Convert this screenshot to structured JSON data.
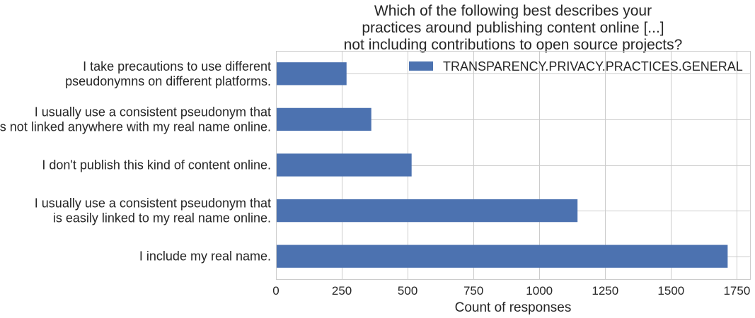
{
  "chart_data": {
    "type": "bar",
    "orientation": "horizontal",
    "title": [
      "Which of the following best describes your",
      "practices around publishing content online [...]",
      "not including contributions to open source projects?"
    ],
    "xlabel": "Count of responses",
    "ylabel": "",
    "xlim": [
      0,
      1800
    ],
    "xticks": [
      0,
      250,
      500,
      750,
      1000,
      1250,
      1500,
      1750
    ],
    "grid": true,
    "legend_position": "top-right",
    "series": [
      {
        "name": "TRANSPARENCY.PRIVACY.PRACTICES.GENERAL",
        "color": "#4c72b0",
        "values": [
          1715,
          1145,
          515,
          362,
          268
        ]
      }
    ],
    "categories": [
      [
        "I include my real name."
      ],
      [
        "I usually use a consistent pseudonym that",
        "is easily linked to my real name online."
      ],
      [
        "I don't publish this kind of content online."
      ],
      [
        "I usually use a consistent pseudonym that",
        "is not linked anywhere with my real name online."
      ],
      [
        "I take precautions to use different",
        "pseudonymns on different platforms."
      ]
    ]
  }
}
